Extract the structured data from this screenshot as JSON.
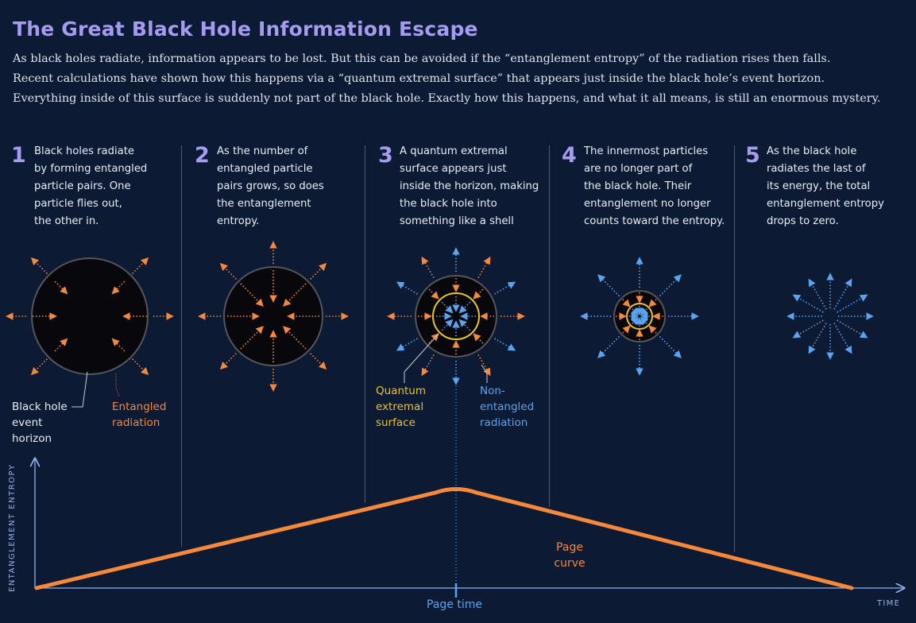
{
  "title": "The Great Black Hole Information Escape",
  "intro": [
    "As black holes radiate, information appears to be lost. But this can be avoided if the “entanglement entropy” of the radiation rises then falls.",
    "Recent calculations have shown how this happens via a “quantum extremal surface” that appears just inside the black hole’s event horizon.",
    "Everything inside of this surface is suddenly not part of the black hole. Exactly how this happens, and what it all means, is still an enormous mystery."
  ],
  "steps": [
    {
      "num": "1",
      "text": "Black holes radiate\nby forming entangled\nparticle pairs. One\nparticle flies out,\nthe other in."
    },
    {
      "num": "2",
      "text": "As the number of\nentangled particle\npairs grows, so does\nthe entanglement\nentropy."
    },
    {
      "num": "3",
      "text": "A quantum extremal\nsurface appears just\ninside the horizon, making\nthe black hole into\nsomething like a shell"
    },
    {
      "num": "4",
      "text": "The innermost particles\nare no longer part of\nthe black hole. Their\nentanglement no longer\ncounts toward the entropy."
    },
    {
      "num": "5",
      "text": "As the black hole\nradiates the last of\nits energy, the total\nentanglement entropy\ndrops to zero."
    }
  ],
  "labels": {
    "event_horizon": "Black hole\nevent\nhorizon",
    "entangled_radiation": "Entangled\nradiation",
    "qes": "Quantum\nextremal\nsurface",
    "non_entangled": "Non-\nentangled\nradiation"
  },
  "graph": {
    "y_axis": "ENTANGLEMENT ENTROPY",
    "x_axis": "TIME",
    "marker": "Page time",
    "curve_label": "Page\ncurve"
  },
  "colors": {
    "background": "#0d1a33",
    "title": "#a59cf0",
    "entangled": "#f5883a",
    "non_entangled": "#5aa3f0",
    "qes": "#e8c42c",
    "horizon": "#55555a",
    "axis": "#8fb2ee"
  }
}
